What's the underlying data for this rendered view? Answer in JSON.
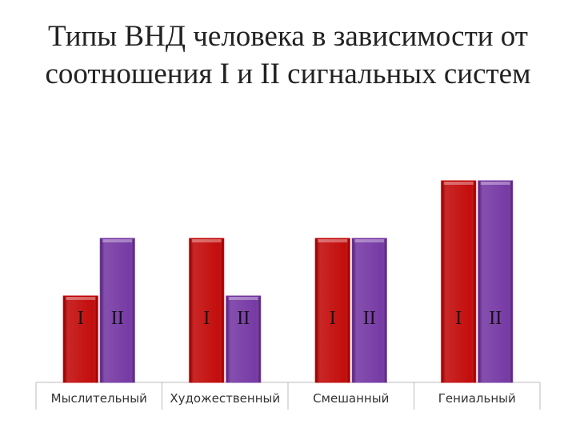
{
  "chart_data": {
    "type": "bar",
    "title": "Типы ВНД человека в зависимости от соотношения I и II сигнальных систем",
    "categories": [
      "Мыслительный",
      "Художественный",
      "Смешанный",
      "Гениальный"
    ],
    "series": [
      {
        "name": "I",
        "color": "#c00000",
        "values": [
          1.5,
          2.5,
          2.5,
          3.5
        ]
      },
      {
        "name": "II",
        "color": "#7030a0",
        "values": [
          2.5,
          1.5,
          2.5,
          3.5
        ]
      }
    ],
    "ylim": [
      0,
      5
    ]
  }
}
